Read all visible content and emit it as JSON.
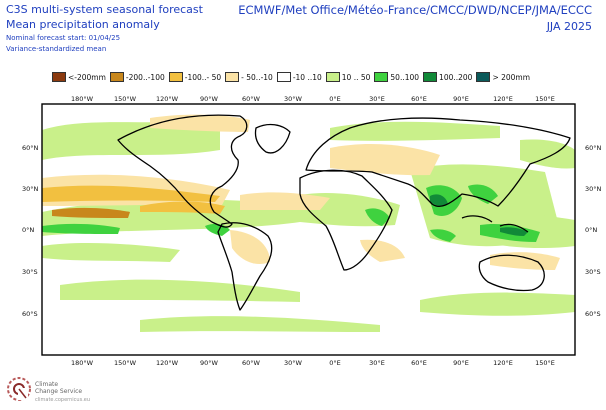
{
  "header": {
    "title_line1": "C3S multi-system seasonal forecast",
    "title_line2": "Mean precipitation anomaly",
    "forecast_start": "Nominal forecast start: 01/04/25",
    "method": "Variance-standardized mean",
    "centres": "ECMWF/Met Office/Météo-France/CMCC/DWD/NCEP/JMA/ECCC",
    "season": "JJA 2025"
  },
  "legend": [
    {
      "label": "<-200mm",
      "color": "#8b3a0f"
    },
    {
      "label": "-200..-100",
      "color": "#c8871c"
    },
    {
      "label": "-100..- 50",
      "color": "#f2c040"
    },
    {
      "label": "- 50..-10",
      "color": "#fbe3a6"
    },
    {
      "label": "-10 ..10",
      "color": "#ffffff"
    },
    {
      "label": "10 .. 50",
      "color": "#c9f08a"
    },
    {
      "label": "50..100",
      "color": "#3fd23f"
    },
    {
      "label": "100..200",
      "color": "#118a38"
    },
    {
      "label": "> 200mm",
      "color": "#0b5a5a"
    }
  ],
  "axes": {
    "lon_top": [
      "180°W",
      "150°W",
      "120°W",
      "90°W",
      "60°W",
      "30°W",
      "0°E",
      "30°E",
      "60°E",
      "90°E",
      "120°E",
      "150°E"
    ],
    "lon_bottom": [
      "180°W",
      "150°W",
      "120°W",
      "90°W",
      "60°W",
      "30°W",
      "0°E",
      "30°E",
      "60°E",
      "90°E",
      "120°E",
      "150°E"
    ],
    "lat_left": [
      "60°N",
      "30°N",
      "0°N",
      "30°S",
      "60°S"
    ],
    "lat_right": [
      "60°N",
      "30°N",
      "0°N",
      "30°S",
      "60°S"
    ]
  },
  "logo": {
    "name_line1": "Climate",
    "name_line2": "Change Service",
    "url": "climate.copernicus.eu"
  },
  "colors": {
    "header_text": "#1f3fbf",
    "coastline": "#000000",
    "border": "#9a9a9a"
  }
}
